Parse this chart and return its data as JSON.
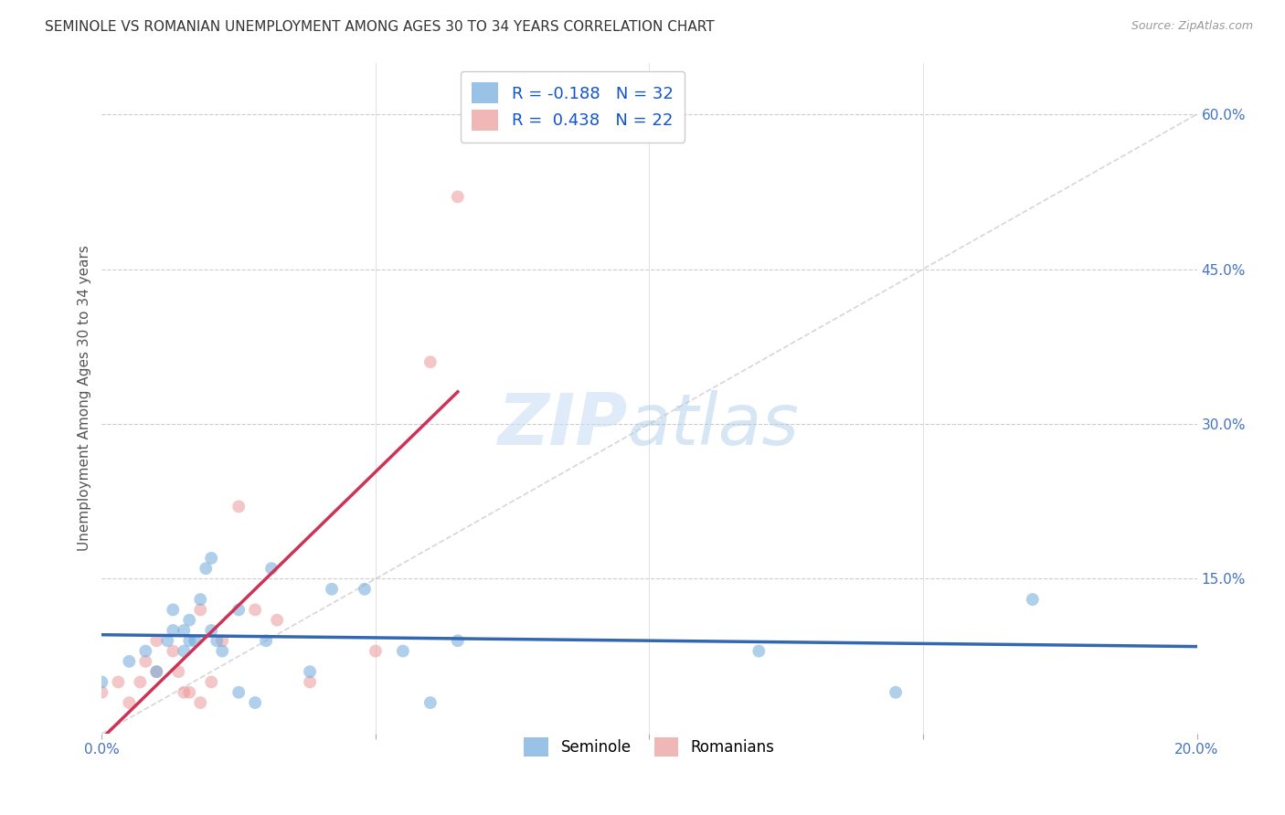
{
  "title": "SEMINOLE VS ROMANIAN UNEMPLOYMENT AMONG AGES 30 TO 34 YEARS CORRELATION CHART",
  "source": "Source: ZipAtlas.com",
  "ylabel": "Unemployment Among Ages 30 to 34 years",
  "xlim": [
    0.0,
    0.2
  ],
  "ylim": [
    0.0,
    0.65
  ],
  "seminole_color": "#6fa8dc",
  "romanian_color": "#ea9999",
  "seminole_line_color": "#3368b0",
  "romanian_line_color": "#cc3355",
  "seminole_R": -0.188,
  "seminole_N": 32,
  "romanian_R": 0.438,
  "romanian_N": 22,
  "legend_text_color": "#1155cc",
  "tick_label_color": "#4472c4",
  "seminole_x": [
    0.0,
    0.005,
    0.008,
    0.01,
    0.012,
    0.013,
    0.013,
    0.015,
    0.015,
    0.016,
    0.016,
    0.017,
    0.018,
    0.019,
    0.02,
    0.02,
    0.021,
    0.022,
    0.025,
    0.025,
    0.028,
    0.03,
    0.031,
    0.038,
    0.042,
    0.048,
    0.055,
    0.06,
    0.065,
    0.12,
    0.145,
    0.17
  ],
  "seminole_y": [
    0.05,
    0.07,
    0.08,
    0.06,
    0.09,
    0.1,
    0.12,
    0.08,
    0.1,
    0.09,
    0.11,
    0.09,
    0.13,
    0.16,
    0.1,
    0.17,
    0.09,
    0.08,
    0.04,
    0.12,
    0.03,
    0.09,
    0.16,
    0.06,
    0.14,
    0.14,
    0.08,
    0.03,
    0.09,
    0.08,
    0.04,
    0.13
  ],
  "romanian_x": [
    0.0,
    0.003,
    0.005,
    0.007,
    0.008,
    0.01,
    0.01,
    0.013,
    0.014,
    0.015,
    0.016,
    0.018,
    0.018,
    0.02,
    0.022,
    0.025,
    0.028,
    0.032,
    0.038,
    0.05,
    0.06,
    0.065
  ],
  "romanian_y": [
    0.04,
    0.05,
    0.03,
    0.05,
    0.07,
    0.06,
    0.09,
    0.08,
    0.06,
    0.04,
    0.04,
    0.12,
    0.03,
    0.05,
    0.09,
    0.22,
    0.12,
    0.11,
    0.05,
    0.08,
    0.36,
    0.52
  ],
  "ref_line_color": "#cccccc",
  "grid_color": "#cccccc",
  "marker_size": 100
}
